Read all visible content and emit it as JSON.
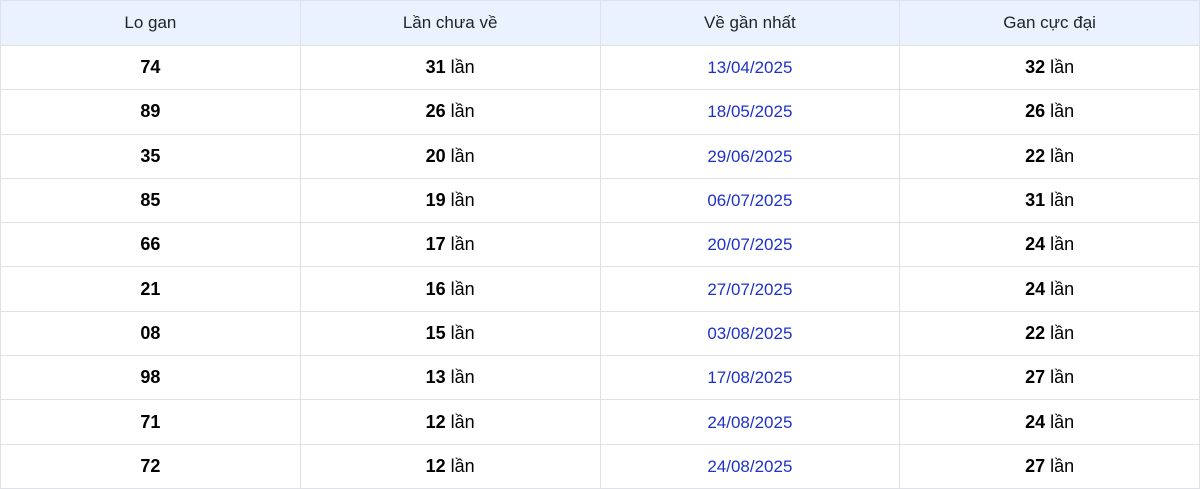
{
  "table": {
    "columns": [
      {
        "key": "lo_gan",
        "label": "Lo gan"
      },
      {
        "key": "lan_chua_ve",
        "label": "Lần chưa về"
      },
      {
        "key": "ve_gan_nhat",
        "label": "Về gần nhất"
      },
      {
        "key": "gan_cuc_dai",
        "label": "Gan cực đại"
      }
    ],
    "unit_suffix": "lần",
    "rows": [
      {
        "lo_gan": "74",
        "lan_chua_ve": "31",
        "ve_gan_nhat": "13/04/2025",
        "gan_cuc_dai": "32"
      },
      {
        "lo_gan": "89",
        "lan_chua_ve": "26",
        "ve_gan_nhat": "18/05/2025",
        "gan_cuc_dai": "26"
      },
      {
        "lo_gan": "35",
        "lan_chua_ve": "20",
        "ve_gan_nhat": "29/06/2025",
        "gan_cuc_dai": "22"
      },
      {
        "lo_gan": "85",
        "lan_chua_ve": "19",
        "ve_gan_nhat": "06/07/2025",
        "gan_cuc_dai": "31"
      },
      {
        "lo_gan": "66",
        "lan_chua_ve": "17",
        "ve_gan_nhat": "20/07/2025",
        "gan_cuc_dai": "24"
      },
      {
        "lo_gan": "21",
        "lan_chua_ve": "16",
        "ve_gan_nhat": "27/07/2025",
        "gan_cuc_dai": "24"
      },
      {
        "lo_gan": "08",
        "lan_chua_ve": "15",
        "ve_gan_nhat": "03/08/2025",
        "gan_cuc_dai": "22"
      },
      {
        "lo_gan": "98",
        "lan_chua_ve": "13",
        "ve_gan_nhat": "17/08/2025",
        "gan_cuc_dai": "27"
      },
      {
        "lo_gan": "71",
        "lan_chua_ve": "12",
        "ve_gan_nhat": "24/08/2025",
        "gan_cuc_dai": "24"
      },
      {
        "lo_gan": "72",
        "lan_chua_ve": "12",
        "ve_gan_nhat": "24/08/2025",
        "gan_cuc_dai": "27"
      }
    ]
  },
  "colors": {
    "header_bg": "#e9f2fd",
    "header_text": "#212529",
    "border": "#dee2e6",
    "date_link": "#1e32c8",
    "cell_text": "#000000"
  }
}
